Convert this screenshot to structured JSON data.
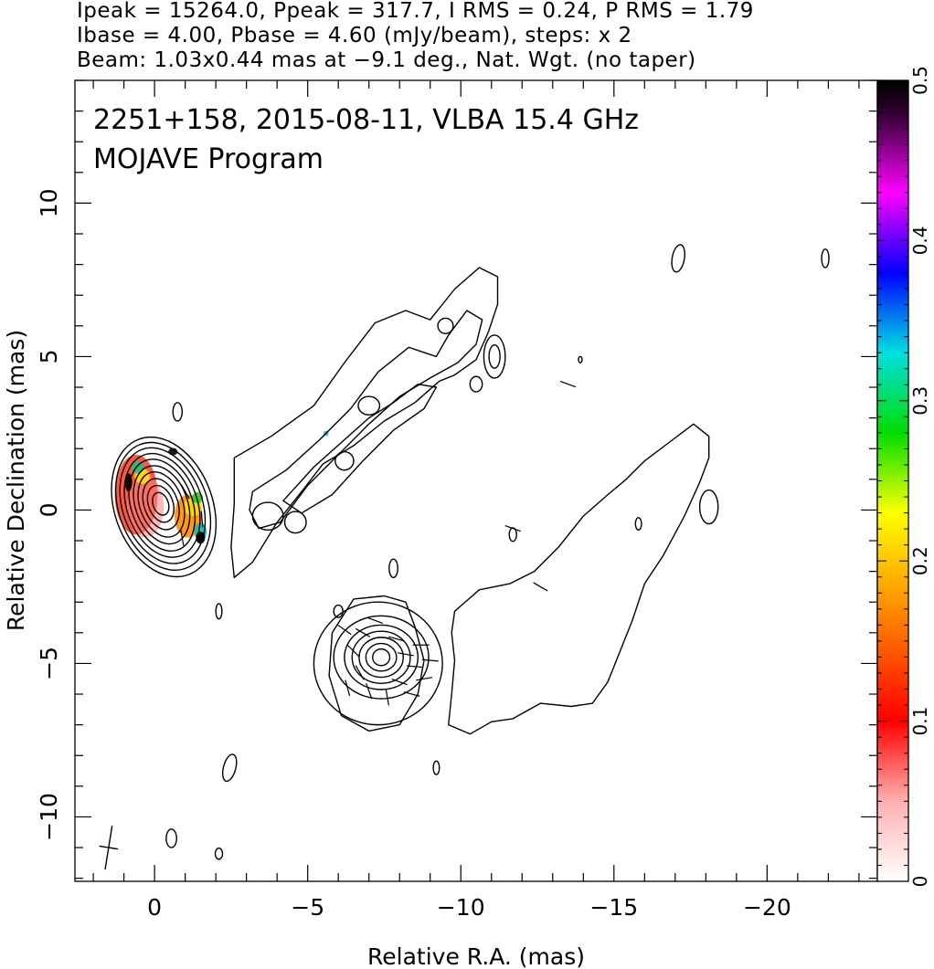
{
  "header": {
    "line1": "Ipeak = 15264.0, Ppeak = 317.7, I RMS = 0.24, P RMS = 1.79",
    "line2": "Ibase = 4.00, Pbase = 4.60 (mJy/beam), steps: x 2",
    "line3": "Beam: 1.03x0.44 mas at −9.1 deg., Nat. Wgt. (no taper)"
  },
  "chart_data": {
    "type": "heatmap",
    "title": "2251+158, 2015-08-11, VLBA 15.4 GHz",
    "subtitle": "MOJAVE Program",
    "xlabel": "Relative R.A. (mas)",
    "ylabel": "Relative Declination (mas)",
    "xlim": [
      2.6,
      -23.6
    ],
    "ylim": [
      -12.1,
      14.0
    ],
    "x_ticks": [
      0,
      -5,
      -10,
      -15,
      -20
    ],
    "x_tick_labels": [
      "0",
      "−5",
      "−10",
      "−15",
      "−20"
    ],
    "y_ticks": [
      -10,
      -5,
      0,
      5,
      10
    ],
    "y_tick_labels": [
      "−10",
      "−5",
      "0",
      "5",
      "10"
    ],
    "colorbar": {
      "range": [
        0,
        0.5
      ],
      "ticks": [
        0,
        0.1,
        0.2,
        0.3,
        0.4,
        0.5
      ],
      "tick_labels": [
        "0",
        "0.1",
        "0.2",
        "0.3",
        "0.4",
        "0.5"
      ],
      "colors": [
        "#ffffff",
        "#ff0000",
        "#ff8c00",
        "#ffff00",
        "#00dd00",
        "#00e0e0",
        "#0000ff",
        "#ff00ff",
        "#000000"
      ]
    },
    "core": {
      "x": -0.25,
      "y": 0.2,
      "peak_mJy": 15264.0
    },
    "contours": [
      {
        "type": "ellipse",
        "cx": -0.3,
        "cy": 0.1,
        "rx": 1.6,
        "ry": 2.35,
        "rot": -20
      },
      {
        "type": "ellipse",
        "cx": -0.28,
        "cy": 0.12,
        "rx": 1.45,
        "ry": 2.15,
        "rot": -20
      },
      {
        "type": "ellipse",
        "cx": -0.26,
        "cy": 0.14,
        "rx": 1.3,
        "ry": 1.95,
        "rot": -20
      },
      {
        "type": "ellipse",
        "cx": -0.25,
        "cy": 0.15,
        "rx": 1.15,
        "ry": 1.75,
        "rot": -20
      },
      {
        "type": "ellipse",
        "cx": -0.24,
        "cy": 0.16,
        "rx": 1.0,
        "ry": 1.55,
        "rot": -20
      },
      {
        "type": "ellipse",
        "cx": -0.23,
        "cy": 0.17,
        "rx": 0.85,
        "ry": 1.32,
        "rot": -20
      },
      {
        "type": "ellipse",
        "cx": -0.22,
        "cy": 0.18,
        "rx": 0.7,
        "ry": 1.1,
        "rot": -20
      },
      {
        "type": "ellipse",
        "cx": -0.21,
        "cy": 0.19,
        "rx": 0.55,
        "ry": 0.86,
        "rot": -20
      },
      {
        "type": "ellipse",
        "cx": -0.2,
        "cy": 0.2,
        "rx": 0.4,
        "ry": 0.62,
        "rot": -20
      },
      {
        "type": "ellipse",
        "cx": -0.2,
        "cy": 0.2,
        "rx": 0.25,
        "ry": 0.38,
        "rot": -20
      },
      {
        "type": "path",
        "pts": [
          [
            -2.6,
            1.7
          ],
          [
            -3.8,
            2.4
          ],
          [
            -5.2,
            3.4
          ],
          [
            -6.2,
            4.8
          ],
          [
            -7.2,
            6.1
          ],
          [
            -8.2,
            6.5
          ],
          [
            -9.0,
            6.2
          ],
          [
            -9.8,
            7.2
          ],
          [
            -10.6,
            7.9
          ],
          [
            -11.2,
            7.6
          ],
          [
            -11.2,
            6.7
          ],
          [
            -10.9,
            5.8
          ],
          [
            -10.5,
            4.9
          ],
          [
            -9.8,
            4.4
          ],
          [
            -9.3,
            4.2
          ],
          [
            -8.5,
            3.5
          ],
          [
            -7.5,
            2.9
          ],
          [
            -6.5,
            2.1
          ],
          [
            -5.5,
            1.5
          ],
          [
            -4.8,
            0.6
          ],
          [
            -4.0,
            -0.4
          ],
          [
            -3.2,
            -1.7
          ],
          [
            -2.6,
            -2.2
          ],
          [
            -2.5,
            -1.2
          ],
          [
            -2.6,
            0.2
          ]
        ]
      },
      {
        "type": "path",
        "pts": [
          [
            -3.2,
            0.6
          ],
          [
            -4.3,
            1.3
          ],
          [
            -5.4,
            2.3
          ],
          [
            -6.4,
            3.3
          ],
          [
            -7.3,
            4.5
          ],
          [
            -8.3,
            5.3
          ],
          [
            -9.2,
            5.0
          ],
          [
            -9.6,
            5.7
          ],
          [
            -10.2,
            6.5
          ],
          [
            -10.7,
            6.2
          ],
          [
            -10.5,
            5.4
          ],
          [
            -9.9,
            4.8
          ],
          [
            -9.0,
            4.3
          ],
          [
            -8.0,
            3.7
          ],
          [
            -7.0,
            2.8
          ],
          [
            -6.0,
            1.8
          ],
          [
            -5.0,
            0.8
          ],
          [
            -4.1,
            -0.4
          ],
          [
            -3.4,
            -0.6
          ],
          [
            -3.1,
            0.0
          ]
        ]
      },
      {
        "type": "path",
        "pts": [
          [
            -4.2,
            0.3
          ],
          [
            -5.2,
            1.4
          ],
          [
            -6.1,
            2.2
          ],
          [
            -7.0,
            3.0
          ],
          [
            -7.8,
            3.5
          ],
          [
            -8.6,
            4.1
          ],
          [
            -9.2,
            4.0
          ],
          [
            -8.8,
            3.3
          ],
          [
            -7.8,
            2.6
          ],
          [
            -6.8,
            1.6
          ],
          [
            -5.8,
            0.5
          ],
          [
            -4.8,
            -0.1
          ]
        ]
      },
      {
        "type": "ellipse",
        "cx": -3.7,
        "cy": -0.2,
        "rx": 0.5,
        "ry": 0.45,
        "rot": 0
      },
      {
        "type": "ellipse",
        "cx": -4.6,
        "cy": -0.4,
        "rx": 0.35,
        "ry": 0.35,
        "rot": 0
      },
      {
        "type": "ellipse",
        "cx": -6.2,
        "cy": 1.6,
        "rx": 0.3,
        "ry": 0.3,
        "rot": 0
      },
      {
        "type": "ellipse",
        "cx": -7.0,
        "cy": 3.4,
        "rx": 0.35,
        "ry": 0.3,
        "rot": 0
      },
      {
        "type": "ellipse",
        "cx": -9.5,
        "cy": 6.0,
        "rx": 0.25,
        "ry": 0.25,
        "rot": 0
      },
      {
        "type": "ellipse",
        "cx": -10.5,
        "cy": 4.1,
        "rx": 0.2,
        "ry": 0.25,
        "rot": 0
      },
      {
        "type": "ellipse",
        "cx": -11.1,
        "cy": 5.0,
        "rx": 0.35,
        "ry": 0.7,
        "rot": 0
      },
      {
        "type": "ellipse",
        "cx": -11.1,
        "cy": 5.0,
        "rx": 0.18,
        "ry": 0.38,
        "rot": 0
      },
      {
        "type": "ellipse",
        "cx": -7.3,
        "cy": -5.0,
        "rx": 2.1,
        "ry": 2.0,
        "rot": 0
      },
      {
        "type": "ellipse",
        "cx": -7.4,
        "cy": -4.8,
        "rx": 1.55,
        "ry": 1.35,
        "rot": 0
      },
      {
        "type": "ellipse",
        "cx": -7.4,
        "cy": -4.8,
        "rx": 1.2,
        "ry": 1.05,
        "rot": 0
      },
      {
        "type": "ellipse",
        "cx": -7.4,
        "cy": -4.8,
        "rx": 0.95,
        "ry": 0.85,
        "rot": 0
      },
      {
        "type": "ellipse",
        "cx": -7.4,
        "cy": -4.8,
        "rx": 0.72,
        "ry": 0.65,
        "rot": 0
      },
      {
        "type": "ellipse",
        "cx": -7.4,
        "cy": -4.8,
        "rx": 0.5,
        "ry": 0.45,
        "rot": 0
      },
      {
        "type": "ellipse",
        "cx": -7.4,
        "cy": -4.8,
        "rx": 0.28,
        "ry": 0.27,
        "rot": 0
      },
      {
        "type": "path",
        "pts": [
          [
            -8.2,
            -3.0
          ],
          [
            -7.5,
            -2.8
          ],
          [
            -6.5,
            -2.9
          ],
          [
            -5.8,
            -4.0
          ],
          [
            -5.7,
            -5.4
          ],
          [
            -6.1,
            -6.7
          ],
          [
            -7.0,
            -7.2
          ],
          [
            -8.0,
            -7.0
          ],
          [
            -8.6,
            -6.0
          ],
          [
            -8.8,
            -4.9
          ],
          [
            -8.5,
            -3.8
          ]
        ]
      },
      {
        "type": "path",
        "pts": [
          [
            -9.8,
            -3.3
          ],
          [
            -10.6,
            -2.6
          ],
          [
            -11.6,
            -2.4
          ],
          [
            -12.4,
            -2.0
          ],
          [
            -13.2,
            -1.2
          ],
          [
            -14.0,
            -0.2
          ],
          [
            -14.8,
            0.5
          ],
          [
            -15.4,
            1.0
          ],
          [
            -16.0,
            1.6
          ],
          [
            -16.8,
            2.2
          ],
          [
            -17.6,
            2.8
          ],
          [
            -18.1,
            2.4
          ],
          [
            -18.1,
            1.7
          ],
          [
            -17.8,
            0.9
          ],
          [
            -17.3,
            -0.2
          ],
          [
            -16.6,
            -1.5
          ],
          [
            -16.0,
            -2.4
          ],
          [
            -15.6,
            -3.6
          ],
          [
            -15.2,
            -4.6
          ],
          [
            -14.8,
            -5.6
          ],
          [
            -14.3,
            -6.3
          ],
          [
            -13.6,
            -6.4
          ],
          [
            -12.6,
            -6.3
          ],
          [
            -11.7,
            -6.8
          ],
          [
            -11.0,
            -6.9
          ],
          [
            -10.3,
            -7.3
          ],
          [
            -9.6,
            -7.0
          ],
          [
            -9.7,
            -6.0
          ],
          [
            -9.8,
            -4.9
          ],
          [
            -9.7,
            -4.0
          ]
        ]
      },
      {
        "type": "ellipse",
        "cx": -18.1,
        "cy": 0.1,
        "rx": 0.3,
        "ry": 0.55,
        "rot": 0
      },
      {
        "type": "ellipse",
        "cx": -15.8,
        "cy": -0.45,
        "rx": 0.1,
        "ry": 0.2,
        "rot": 0
      },
      {
        "type": "ellipse",
        "cx": -11.7,
        "cy": -0.8,
        "rx": 0.12,
        "ry": 0.22,
        "rot": 0
      },
      {
        "type": "ellipse",
        "cx": -0.75,
        "cy": 3.2,
        "rx": 0.15,
        "ry": 0.3,
        "rot": 0
      },
      {
        "type": "ellipse",
        "cx": -2.1,
        "cy": -3.3,
        "rx": 0.1,
        "ry": 0.25,
        "rot": 0
      },
      {
        "type": "ellipse",
        "cx": -7.8,
        "cy": -1.9,
        "rx": 0.14,
        "ry": 0.3,
        "rot": 0
      },
      {
        "type": "ellipse",
        "cx": -6.0,
        "cy": -3.3,
        "rx": 0.15,
        "ry": 0.2,
        "rot": 0
      },
      {
        "type": "ellipse",
        "cx": -2.45,
        "cy": -8.4,
        "rx": 0.2,
        "ry": 0.45,
        "rot": 15
      },
      {
        "type": "ellipse",
        "cx": -2.1,
        "cy": -11.2,
        "rx": 0.12,
        "ry": 0.18,
        "rot": 0
      },
      {
        "type": "ellipse",
        "cx": -0.55,
        "cy": -10.7,
        "rx": 0.17,
        "ry": 0.3,
        "rot": 0
      },
      {
        "type": "ellipse",
        "cx": -9.2,
        "cy": -8.4,
        "rx": 0.1,
        "ry": 0.22,
        "rot": 0
      },
      {
        "type": "ellipse",
        "cx": -17.1,
        "cy": 8.2,
        "rx": 0.2,
        "ry": 0.45,
        "rot": 10
      },
      {
        "type": "ellipse",
        "cx": -21.9,
        "cy": 8.2,
        "rx": 0.12,
        "ry": 0.3,
        "rot": 0
      },
      {
        "type": "ellipse",
        "cx": -13.9,
        "cy": 4.9,
        "rx": 0.06,
        "ry": 0.1,
        "rot": 0
      }
    ],
    "polarization_blobs": [
      {
        "x": 0.6,
        "y": 0.5,
        "rx": 0.7,
        "ry": 1.3,
        "color": "#ff2000",
        "opacity": 0.75
      },
      {
        "x": 0.3,
        "y": 0.1,
        "rx": 0.6,
        "ry": 1.0,
        "color": "#ff8080",
        "opacity": 0.55
      },
      {
        "x": -1.1,
        "y": -0.2,
        "rx": 0.45,
        "ry": 0.7,
        "color": "#ff8c00",
        "opacity": 0.9
      },
      {
        "x": -1.25,
        "y": 0.1,
        "rx": 0.3,
        "ry": 0.3,
        "color": "#ffdd00",
        "opacity": 0.9
      },
      {
        "x": -1.4,
        "y": 0.4,
        "rx": 0.18,
        "ry": 0.18,
        "color": "#22cc22",
        "opacity": 0.9
      },
      {
        "x": -1.5,
        "y": -0.7,
        "rx": 0.2,
        "ry": 0.28,
        "color": "#00c0c0",
        "opacity": 0.9
      },
      {
        "x": -1.5,
        "y": -0.9,
        "rx": 0.15,
        "ry": 0.2,
        "color": "#000000",
        "opacity": 0.95
      },
      {
        "x": 0.4,
        "y": 1.1,
        "rx": 0.25,
        "ry": 0.25,
        "color": "#ffee00",
        "opacity": 0.8
      },
      {
        "x": 0.55,
        "y": 1.4,
        "rx": 0.2,
        "ry": 0.2,
        "color": "#00cc88",
        "opacity": 0.8
      },
      {
        "x": -0.6,
        "y": 1.9,
        "rx": 0.15,
        "ry": 0.12,
        "color": "#000000",
        "opacity": 0.9
      },
      {
        "x": 0.85,
        "y": 0.9,
        "rx": 0.12,
        "ry": 0.3,
        "color": "#000000",
        "opacity": 0.9
      },
      {
        "x": -5.6,
        "y": 2.5,
        "rx": 0.08,
        "ry": 0.08,
        "color": "#00c0e0",
        "opacity": 0.9
      }
    ],
    "evpa_ticks": [
      {
        "x": -7.9,
        "y": -4.2,
        "angle": 15
      },
      {
        "x": -8.2,
        "y": -4.7,
        "angle": 10
      },
      {
        "x": -8.5,
        "y": -5.1,
        "angle": 5
      },
      {
        "x": -8.0,
        "y": -5.6,
        "angle": 20
      },
      {
        "x": -6.8,
        "y": -4.0,
        "angle": 30
      },
      {
        "x": -6.5,
        "y": -4.6,
        "angle": 45
      },
      {
        "x": -6.7,
        "y": -5.3,
        "angle": 60
      },
      {
        "x": -7.0,
        "y": -5.9,
        "angle": 70
      },
      {
        "x": -7.6,
        "y": -6.1,
        "angle": 80
      },
      {
        "x": -8.4,
        "y": -6.0,
        "angle": 15
      },
      {
        "x": -8.7,
        "y": -4.4,
        "angle": 0
      },
      {
        "x": -8.8,
        "y": -5.5,
        "angle": -10
      },
      {
        "x": -6.2,
        "y": -3.9,
        "angle": 35
      },
      {
        "x": -6.3,
        "y": -5.8,
        "angle": 75
      },
      {
        "x": -7.2,
        "y": -3.6,
        "angle": 20
      },
      {
        "x": -9.0,
        "y": -4.9,
        "angle": 5
      },
      {
        "x": -11.7,
        "y": -0.6,
        "angle": 20
      },
      {
        "x": -12.6,
        "y": -2.5,
        "angle": 30
      },
      {
        "x": -13.5,
        "y": 4.1,
        "angle": 20
      },
      {
        "x": -0.9,
        "y": -0.9,
        "angle": 80
      },
      {
        "x": -1.55,
        "y": -0.3,
        "angle": 85
      },
      {
        "x": -1.0,
        "y": 0.6,
        "angle": 60
      }
    ],
    "beam": {
      "x": 1.5,
      "y": -11.0,
      "major": 1.03,
      "minor": 0.44,
      "pa": -9.1
    }
  }
}
